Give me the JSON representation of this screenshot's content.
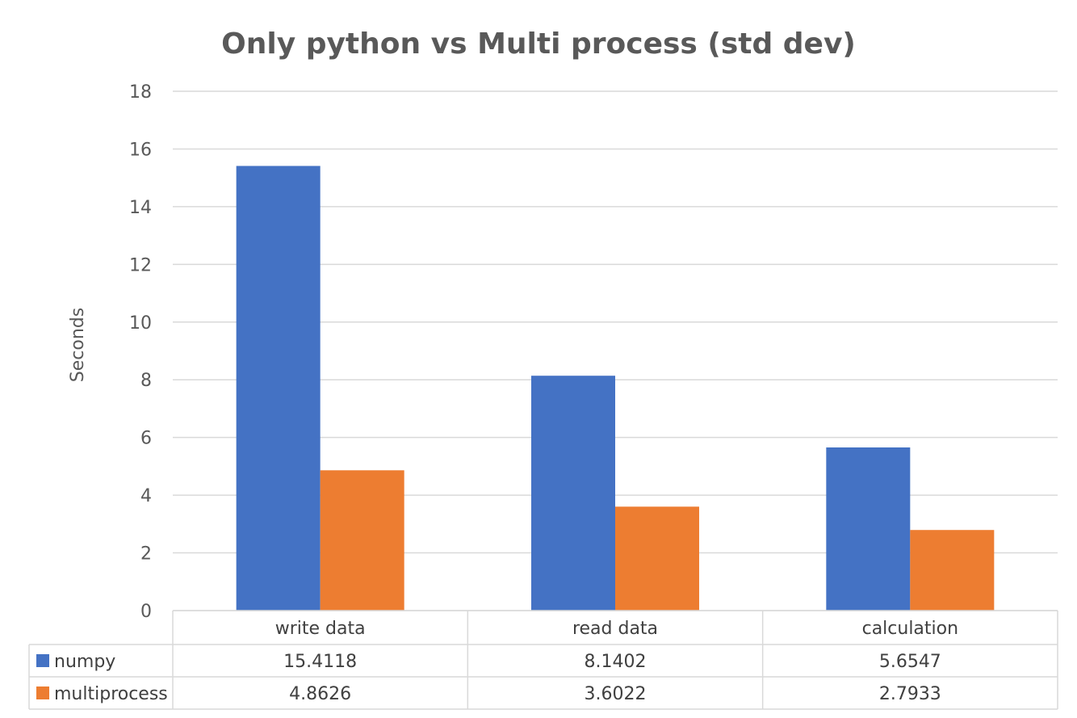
{
  "chart_data": {
    "type": "bar",
    "title": "Only python vs Multi process (std dev)",
    "ylabel": "Seconds",
    "xlabel": "",
    "categories": [
      "write data",
      "read data",
      "calculation"
    ],
    "series": [
      {
        "name": "numpy",
        "values": [
          15.4118,
          8.1402,
          5.6547
        ],
        "color": "#4472C4",
        "labels": [
          "15.4118",
          "8.1402",
          "5.6547"
        ]
      },
      {
        "name": "multiprocess",
        "values": [
          4.8626,
          3.6022,
          2.7933
        ],
        "color": "#ED7D31",
        "labels": [
          "4.8626",
          "3.6022",
          "2.7933"
        ]
      }
    ],
    "ylim": [
      0,
      18
    ],
    "yticks": [
      0,
      2,
      4,
      6,
      8,
      10,
      12,
      14,
      16,
      18
    ],
    "grid": true,
    "legend": "data-table-keys",
    "data_table": true
  }
}
